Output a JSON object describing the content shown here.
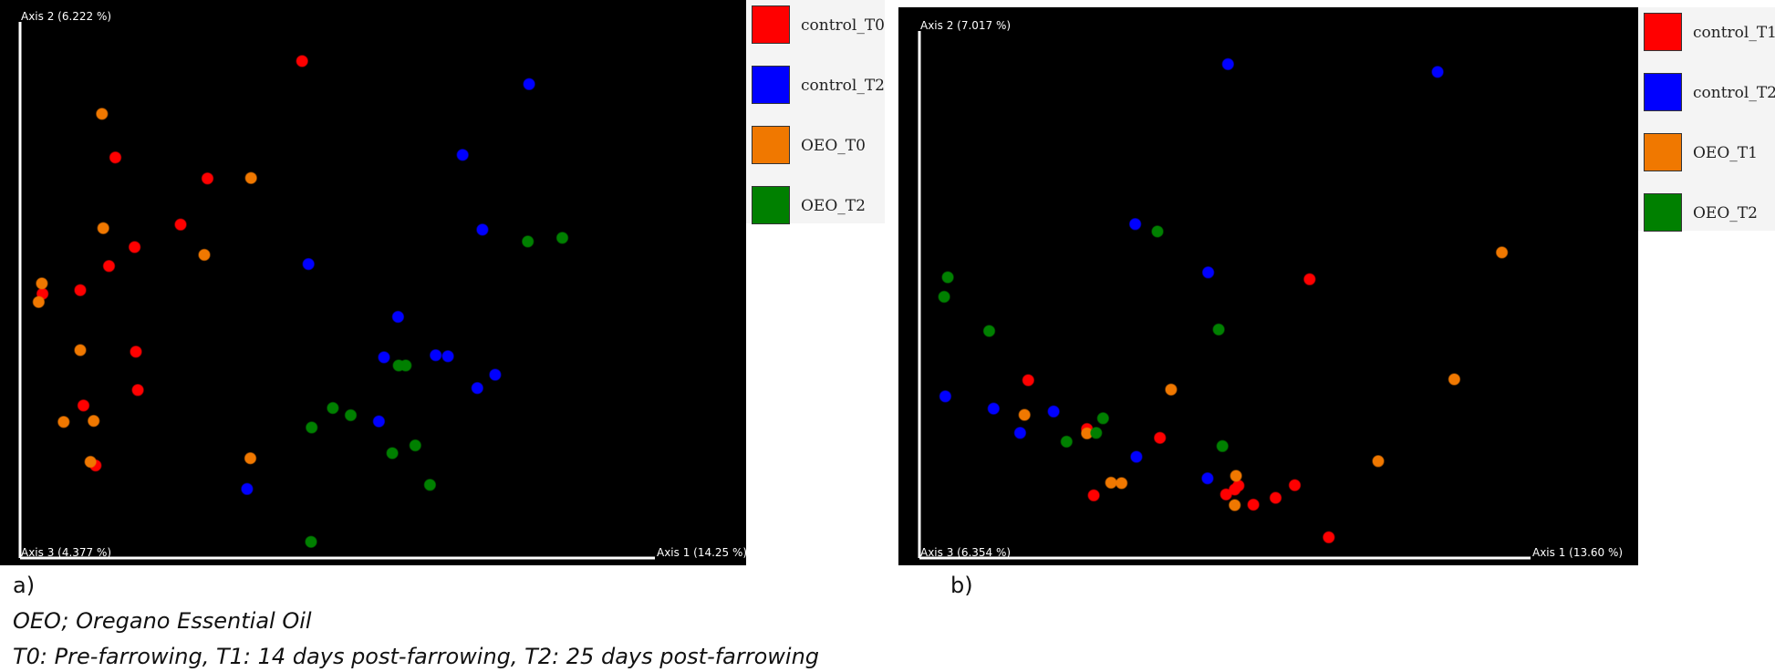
{
  "panels": [
    {
      "letter": "a)"
    },
    {
      "letter": "b)"
    }
  ],
  "captions": [
    "OEO; Oregano Essential Oil",
    "T0: Pre-farrowing, T1: 14 days post-farrowing, T2:  25 days post-farrowing"
  ],
  "chart_data": [
    {
      "type": "scatter",
      "title": "",
      "axis_labels": {
        "x": "Axis 1 (14.25 %)",
        "y": "Axis 2 (6.222 %)",
        "z": "Axis 3 (4.377 %)"
      },
      "xlim": [
        0,
        100
      ],
      "ylim": [
        0,
        100
      ],
      "grid": false,
      "legend_position": "right",
      "series": [
        {
          "name": "control_T0",
          "color": "#ff0000",
          "points": [
            [
              43.4,
              94.3
            ],
            [
              14.2,
              75.5
            ],
            [
              28.6,
              71.4
            ],
            [
              24.4,
              62.4
            ],
            [
              17.2,
              58.0
            ],
            [
              13.2,
              54.3
            ],
            [
              2.8,
              48.9
            ],
            [
              8.7,
              49.6
            ],
            [
              17.4,
              37.6
            ],
            [
              17.7,
              30.1
            ],
            [
              9.2,
              27.1
            ],
            [
              11.1,
              15.4
            ]
          ]
        },
        {
          "name": "control_T2",
          "color": "#0000ff",
          "points": [
            [
              78.9,
              89.8
            ],
            [
              68.5,
              76.0
            ],
            [
              71.6,
              61.4
            ],
            [
              44.4,
              54.7
            ],
            [
              58.4,
              44.4
            ],
            [
              56.2,
              36.5
            ],
            [
              64.3,
              36.9
            ],
            [
              66.2,
              36.7
            ],
            [
              70.8,
              30.5
            ],
            [
              73.6,
              33.1
            ],
            [
              55.4,
              24.0
            ],
            [
              34.8,
              10.8
            ]
          ]
        },
        {
          "name": "OEO_T0",
          "color": "#f07800",
          "points": [
            [
              12.1,
              84.0
            ],
            [
              35.4,
              71.5
            ],
            [
              12.3,
              61.7
            ],
            [
              28.1,
              56.5
            ],
            [
              2.7,
              50.9
            ],
            [
              2.2,
              47.3
            ],
            [
              8.7,
              37.9
            ],
            [
              6.1,
              23.9
            ],
            [
              10.8,
              24.1
            ],
            [
              10.3,
              16.1
            ],
            [
              35.3,
              16.8
            ]
          ]
        },
        {
          "name": "OEO_T2",
          "color": "#008000",
          "points": [
            [
              78.7,
              59.1
            ],
            [
              84.1,
              59.8
            ],
            [
              58.5,
              34.9
            ],
            [
              59.6,
              34.9
            ],
            [
              48.2,
              26.6
            ],
            [
              51.0,
              25.2
            ],
            [
              44.9,
              22.8
            ],
            [
              57.5,
              17.8
            ],
            [
              61.1,
              19.3
            ],
            [
              63.4,
              11.6
            ],
            [
              44.8,
              0.5
            ]
          ]
        }
      ]
    },
    {
      "type": "scatter",
      "title": "",
      "axis_labels": {
        "x": "Axis 1 (13.60 %)",
        "y": "Axis 2 (7.017 %)",
        "z": "Axis 3 (6.354 %)"
      },
      "xlim": [
        0,
        100
      ],
      "ylim": [
        0,
        100
      ],
      "grid": false,
      "legend_position": "right",
      "series": [
        {
          "name": "control_T1",
          "color": "#ff0000",
          "points": [
            [
              62.5,
              54.9
            ],
            [
              17.0,
              34.2
            ],
            [
              26.5,
              24.2
            ],
            [
              38.3,
              22.4
            ],
            [
              60.1,
              12.7
            ],
            [
              51.0,
              12.6
            ],
            [
              50.4,
              11.8
            ],
            [
              57.0,
              10.1
            ],
            [
              49.0,
              10.8
            ],
            [
              53.4,
              8.7
            ],
            [
              27.6,
              10.6
            ],
            [
              65.6,
              2.0
            ]
          ]
        },
        {
          "name": "control_T2",
          "color": "#0000ff",
          "points": [
            [
              49.3,
              99.0
            ],
            [
              83.2,
              97.4
            ],
            [
              34.3,
              66.2
            ],
            [
              46.1,
              56.3
            ],
            [
              3.6,
              30.9
            ],
            [
              11.4,
              28.4
            ],
            [
              21.1,
              27.8
            ],
            [
              15.7,
              23.4
            ],
            [
              34.5,
              18.5
            ],
            [
              46.0,
              14.1
            ]
          ]
        },
        {
          "name": "OEO_T1",
          "color": "#f07800",
          "points": [
            [
              93.6,
              60.4
            ],
            [
              85.9,
              34.4
            ],
            [
              40.1,
              32.3
            ],
            [
              16.4,
              27.1
            ],
            [
              26.5,
              23.3
            ],
            [
              73.6,
              17.6
            ],
            [
              50.6,
              14.6
            ],
            [
              30.4,
              13.2
            ],
            [
              32.1,
              13.1
            ],
            [
              50.4,
              8.6
            ]
          ]
        },
        {
          "name": "OEO_T2",
          "color": "#008000",
          "points": [
            [
              37.9,
              64.7
            ],
            [
              4.0,
              55.3
            ],
            [
              3.4,
              51.3
            ],
            [
              10.7,
              44.3
            ],
            [
              47.8,
              44.6
            ],
            [
              29.1,
              26.4
            ],
            [
              28.0,
              23.4
            ],
            [
              23.2,
              21.6
            ],
            [
              48.4,
              20.7
            ]
          ]
        }
      ]
    }
  ]
}
